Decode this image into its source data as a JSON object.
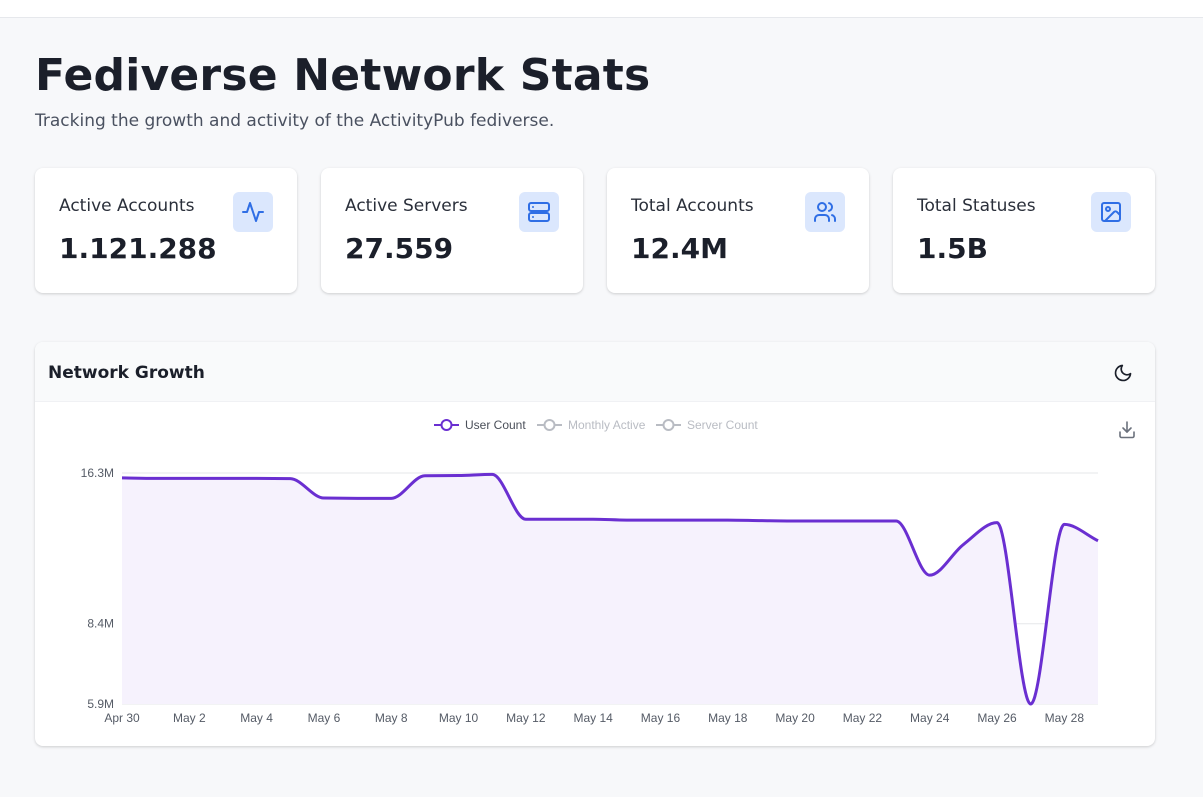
{
  "header": {
    "title": "Fediverse Network Stats",
    "subtitle": "Tracking the growth and activity of the ActivityPub fediverse."
  },
  "stats": [
    {
      "label": "Active Accounts",
      "value": "1.121.288",
      "icon": "activity-icon"
    },
    {
      "label": "Active Servers",
      "value": "27.559",
      "icon": "server-icon"
    },
    {
      "label": "Total Accounts",
      "value": "12.4M",
      "icon": "users-icon"
    },
    {
      "label": "Total Statuses",
      "value": "1.5B",
      "icon": "image-icon"
    }
  ],
  "chart": {
    "title": "Network Growth",
    "toggle_icon": "moon-icon",
    "download_icon": "download-icon"
  },
  "colors": {
    "accent": "#6a2fd1",
    "accent_fill": "#f6f2fd",
    "icon_bg": "#dbe7fd",
    "icon_stroke": "#2f6ee5",
    "legend_inactive": "#b9bcc3"
  },
  "chart_data": {
    "type": "area",
    "title": "",
    "xlabel": "",
    "ylabel": "",
    "legend": [
      {
        "name": "User Count",
        "active": true
      },
      {
        "name": "Monthly Active",
        "active": false
      },
      {
        "name": "Server Count",
        "active": false
      }
    ],
    "legend_position": "top-center",
    "x_ticks": [
      "Apr 30",
      "May 2",
      "May 4",
      "May 6",
      "May 8",
      "May 10",
      "May 12",
      "May 14",
      "May 16",
      "May 18",
      "May 20",
      "May 22",
      "May 24",
      "May 26",
      "May 28"
    ],
    "y_ticks": [
      "16.3M",
      "8.4M",
      "5.9M"
    ],
    "y_axis": "log",
    "ylim": [
      5.9,
      16.3
    ],
    "grid": true,
    "series": [
      {
        "name": "User Count",
        "unit": "M",
        "points": [
          [
            "Apr 30",
            15.95
          ],
          [
            "May 1",
            15.92
          ],
          [
            "May 2",
            15.92
          ],
          [
            "May 3",
            15.92
          ],
          [
            "May 4",
            15.92
          ],
          [
            "May 5",
            15.9
          ],
          [
            "May 6",
            14.6
          ],
          [
            "May 7",
            14.58
          ],
          [
            "May 8",
            14.58
          ],
          [
            "May 9",
            16.1
          ],
          [
            "May 10",
            16.12
          ],
          [
            "May 11",
            16.2
          ],
          [
            "May 12",
            13.3
          ],
          [
            "May 13",
            13.3
          ],
          [
            "May 14",
            13.3
          ],
          [
            "May 15",
            13.25
          ],
          [
            "May 16",
            13.25
          ],
          [
            "May 17",
            13.25
          ],
          [
            "May 18",
            13.25
          ],
          [
            "May 19",
            13.22
          ],
          [
            "May 20",
            13.2
          ],
          [
            "May 21",
            13.2
          ],
          [
            "May 22",
            13.2
          ],
          [
            "May 23",
            13.2
          ],
          [
            "May 24",
            10.4
          ],
          [
            "May 25",
            11.9
          ],
          [
            "May 26",
            13.1
          ],
          [
            "May 27",
            5.9
          ],
          [
            "May 28",
            13.0
          ],
          [
            "May 29",
            12.1
          ]
        ]
      }
    ]
  }
}
